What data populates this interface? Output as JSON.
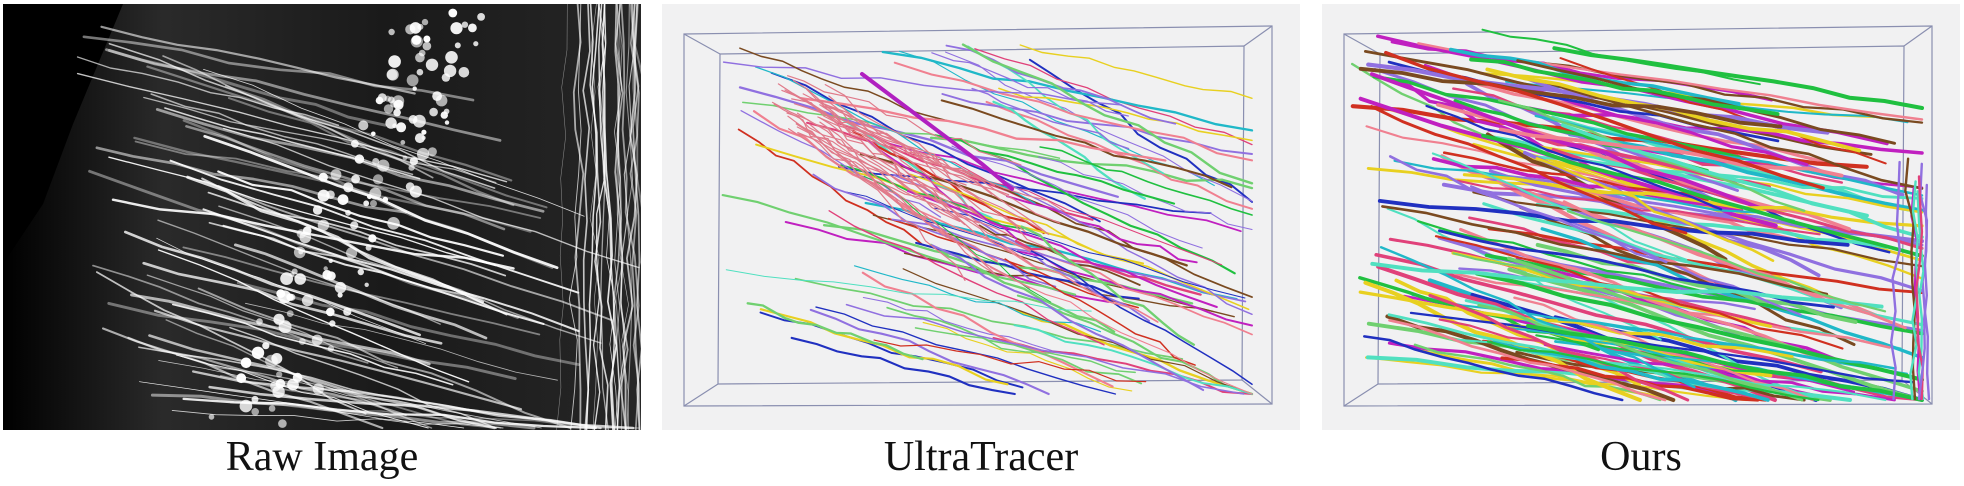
{
  "panels": [
    {
      "caption": "Raw Image"
    },
    {
      "caption": "UltraTracer"
    },
    {
      "caption": "Ours"
    }
  ],
  "colors": {
    "raw_background": "#050505",
    "raw_fiber": "#ffffff",
    "render_background": "#f1f1f2",
    "box_edge": "#8a8fb0",
    "trace_palette": [
      "#e0417a",
      "#f08090",
      "#2030c0",
      "#20c040",
      "#e8d020",
      "#20b8c8",
      "#c020c0",
      "#d03020",
      "#70d070",
      "#7a4a20",
      "#9070e0",
      "#50e0c0"
    ]
  }
}
